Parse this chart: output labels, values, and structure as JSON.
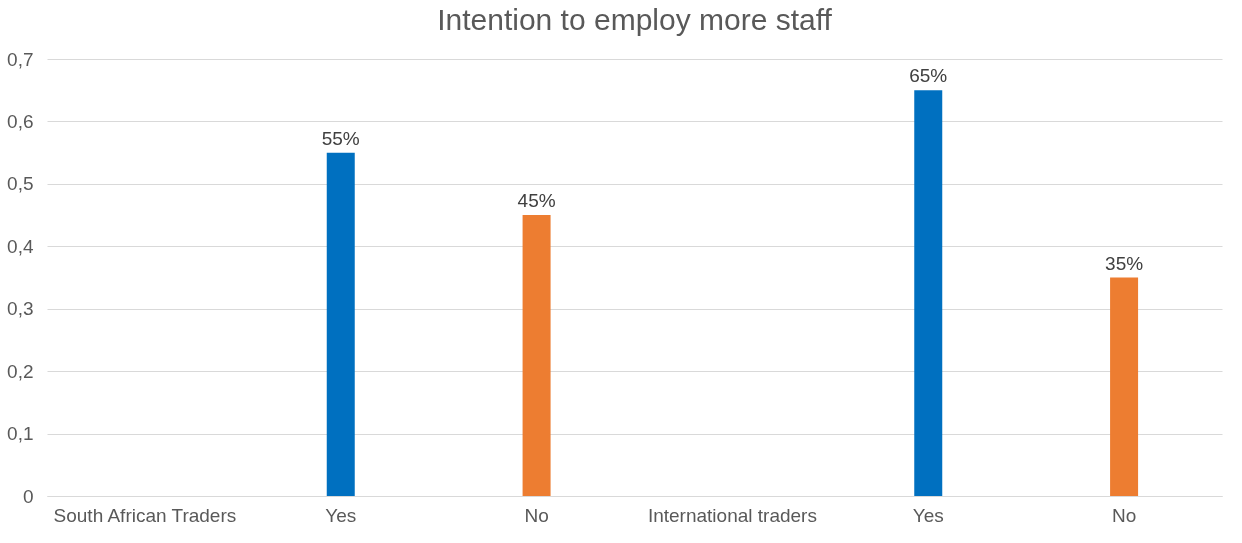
{
  "chart_data": {
    "type": "bar",
    "title": "Intention to employ more staff",
    "categories": [
      "South African Traders",
      "Yes",
      "No",
      "International traders",
      "Yes",
      "No"
    ],
    "values": [
      null,
      0.55,
      0.45,
      null,
      0.65,
      0.35
    ],
    "colors": [
      null,
      "#0070c0",
      "#ed7d31",
      null,
      "#0070c0",
      "#ed7d31"
    ],
    "value_labels": [
      null,
      "55%",
      "45%",
      null,
      "65%",
      "35%"
    ],
    "ylim": [
      0,
      0.7
    ],
    "yticks": [
      0,
      {
        "value": 0.1,
        "label": "0,1"
      },
      {
        "value": 0.2,
        "label": "0,2"
      },
      {
        "value": 0.3,
        "label": "0,3"
      },
      {
        "value": 0.4,
        "label": "0,4"
      },
      {
        "value": 0.5,
        "label": "0,5"
      },
      {
        "value": 0.6,
        "label": "0,6"
      },
      {
        "value": 0.7,
        "label": "0,7"
      }
    ],
    "grid": "y"
  }
}
